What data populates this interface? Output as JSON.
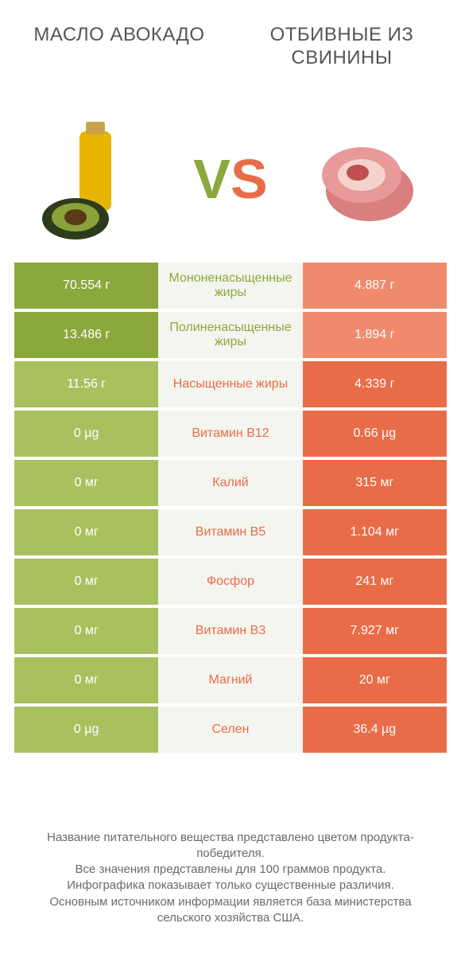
{
  "colors": {
    "green": "#8ba83c",
    "green_light": "#a8c15f",
    "orange": "#e86c47",
    "orange_light": "#ef8b6c",
    "mid_bg": "#f5f5f0",
    "text": "#555555",
    "white": "#ffffff"
  },
  "header": {
    "left_title": "МАСЛО АВОКАДО",
    "right_title": "ОТБИВНЫЕ ИЗ СВИНИНЫ",
    "vs_v": "V",
    "vs_s": "S"
  },
  "rows": [
    {
      "left": "70.554 г",
      "mid": "Мононенасыщенные жиры",
      "right": "4.887 г",
      "winner": "left"
    },
    {
      "left": "13.486 г",
      "mid": "Полиненасыщенные жиры",
      "right": "1.894 г",
      "winner": "left"
    },
    {
      "left": "11.56 г",
      "mid": "Насыщенные жиры",
      "right": "4.339 г",
      "winner": "right"
    },
    {
      "left": "0 µg",
      "mid": "Витамин B12",
      "right": "0.66 µg",
      "winner": "right"
    },
    {
      "left": "0 мг",
      "mid": "Калий",
      "right": "315 мг",
      "winner": "right"
    },
    {
      "left": "0 мг",
      "mid": "Витамин B5",
      "right": "1.104 мг",
      "winner": "right"
    },
    {
      "left": "0 мг",
      "mid": "Фосфор",
      "right": "241 мг",
      "winner": "right"
    },
    {
      "left": "0 мг",
      "mid": "Витамин B3",
      "right": "7.927 мг",
      "winner": "right"
    },
    {
      "left": "0 мг",
      "mid": "Магний",
      "right": "20 мг",
      "winner": "right"
    },
    {
      "left": "0 µg",
      "mid": "Селен",
      "right": "36.4 µg",
      "winner": "right"
    }
  ],
  "footer": {
    "line1": "Название питательного вещества представлено цветом продукта-победителя.",
    "line2": "Все значения представлены для 100 граммов продукта.",
    "line3": "Инфографика показывает только существенные различия.",
    "line4": "Основным источником информации является база министерства сельского хозяйства США."
  }
}
